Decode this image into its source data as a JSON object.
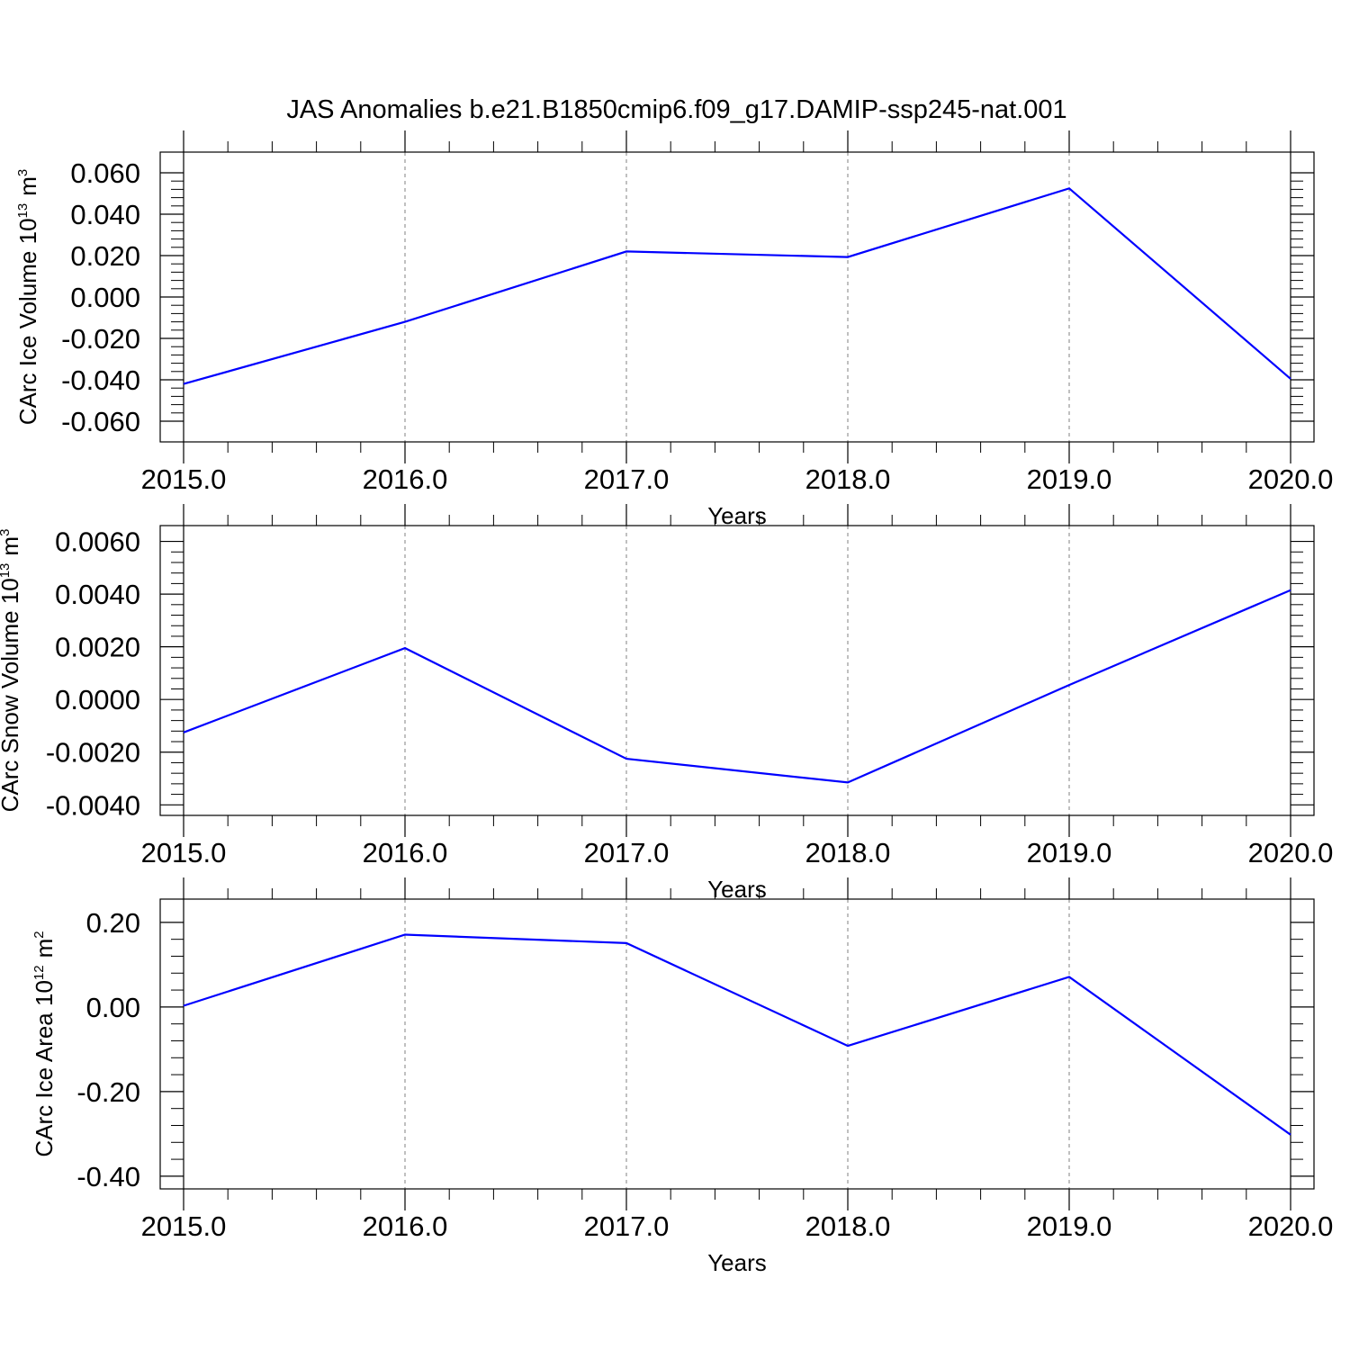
{
  "title": "JAS Anomalies b.e21.B1850cmip6.f09_g17.DAMIP-ssp245-nat.001",
  "colors": {
    "line": "#0000ff",
    "axis": "#000000",
    "grid": "#808080"
  },
  "chart_data": [
    {
      "type": "line",
      "ylabel": {
        "prefix": "CArc Ice Volume 10",
        "exponent": "13",
        "unit": "m",
        "unit_exponent": "3"
      },
      "xlabel": "Years",
      "xlim": [
        2015,
        2020
      ],
      "ylim": [
        -0.06,
        0.06
      ],
      "x_tick_labels": [
        "2015.0",
        "2016.0",
        "2017.0",
        "2018.0",
        "2019.0",
        "2020.0"
      ],
      "x_ticks": [
        2015,
        2016,
        2017,
        2018,
        2019,
        2020
      ],
      "y_tick_labels": [
        "0.060",
        "0.040",
        "0.020",
        "0.000",
        "-0.020",
        "-0.040",
        "-0.060"
      ],
      "y_ticks": [
        0.06,
        0.04,
        0.02,
        0.0,
        -0.02,
        -0.04,
        -0.06
      ],
      "grid": "vertical dashed at major x ticks",
      "series": [
        {
          "x": [
            2015,
            2016,
            2017,
            2018,
            2019,
            2020
          ],
          "values": [
            -0.042,
            -0.012,
            0.022,
            0.0193,
            0.0525,
            -0.0395
          ]
        }
      ]
    },
    {
      "type": "line",
      "ylabel": {
        "prefix": "CArc Snow Volume 10",
        "exponent": "13",
        "unit": "m",
        "unit_exponent": "3"
      },
      "xlabel": "Years",
      "xlim": [
        2015,
        2020
      ],
      "ylim": [
        -0.004,
        0.006
      ],
      "x_tick_labels": [
        "2015.0",
        "2016.0",
        "2017.0",
        "2018.0",
        "2019.0",
        "2020.0"
      ],
      "x_ticks": [
        2015,
        2016,
        2017,
        2018,
        2019,
        2020
      ],
      "y_tick_labels": [
        "0.0060",
        "0.0040",
        "0.0020",
        "0.0000",
        "-0.0020",
        "-0.0040"
      ],
      "y_ticks": [
        0.006,
        0.004,
        0.002,
        0.0,
        -0.002,
        -0.004
      ],
      "grid": "vertical dashed at major x ticks",
      "series": [
        {
          "x": [
            2015,
            2016,
            2017,
            2018,
            2019,
            2020
          ],
          "values": [
            -0.00125,
            0.00195,
            -0.00225,
            -0.00315,
            0.00055,
            0.00415
          ]
        }
      ]
    },
    {
      "type": "line",
      "ylabel": {
        "prefix": "CArc Ice Area 10",
        "exponent": "12",
        "unit": "m",
        "unit_exponent": "2"
      },
      "xlabel": "Years",
      "xlim": [
        2015,
        2020
      ],
      "ylim": [
        -0.4,
        0.2
      ],
      "x_tick_labels": [
        "2015.0",
        "2016.0",
        "2017.0",
        "2018.0",
        "2019.0",
        "2020.0"
      ],
      "x_ticks": [
        2015,
        2016,
        2017,
        2018,
        2019,
        2020
      ],
      "y_tick_labels": [
        "0.20",
        "0.00",
        "-0.20",
        "-0.40"
      ],
      "y_ticks": [
        0.2,
        0.0,
        -0.2,
        -0.4
      ],
      "grid": "vertical dashed at major x ticks",
      "series": [
        {
          "x": [
            2015,
            2016,
            2017,
            2018,
            2019,
            2020
          ],
          "values": [
            0.003,
            0.171,
            0.151,
            -0.092,
            0.071,
            -0.302
          ]
        }
      ]
    }
  ]
}
